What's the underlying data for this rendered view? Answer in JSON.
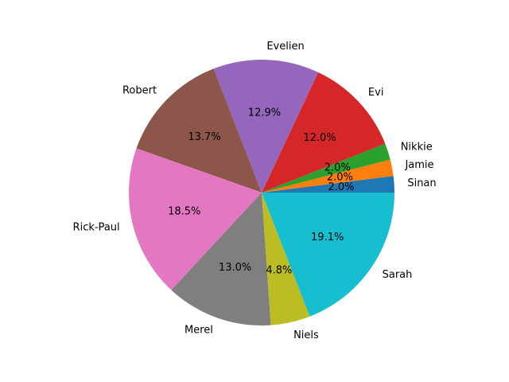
{
  "chart_data": {
    "type": "pie",
    "title": "",
    "start_angle_deg": 0,
    "direction": "counterclockwise",
    "categories": [
      "Sinan",
      "Jamie",
      "Nikkie",
      "Evi",
      "Evelien",
      "Robert",
      "Rick-Paul",
      "Merel",
      "Niels",
      "Sarah"
    ],
    "values": [
      2.0,
      2.0,
      2.0,
      12.0,
      12.9,
      13.7,
      18.5,
      13.0,
      4.8,
      19.1
    ],
    "value_labels": [
      "2.0%",
      "2.0%",
      "2.0%",
      "12.0%",
      "12.9%",
      "13.7%",
      "18.5%",
      "13.0%",
      "4.8%",
      "19.1%"
    ],
    "colors": [
      "#1f77b4",
      "#ff7f0e",
      "#2ca02c",
      "#d62728",
      "#9467bd",
      "#8c564b",
      "#e377c2",
      "#7f7f7f",
      "#bcbd22",
      "#17becf"
    ]
  }
}
